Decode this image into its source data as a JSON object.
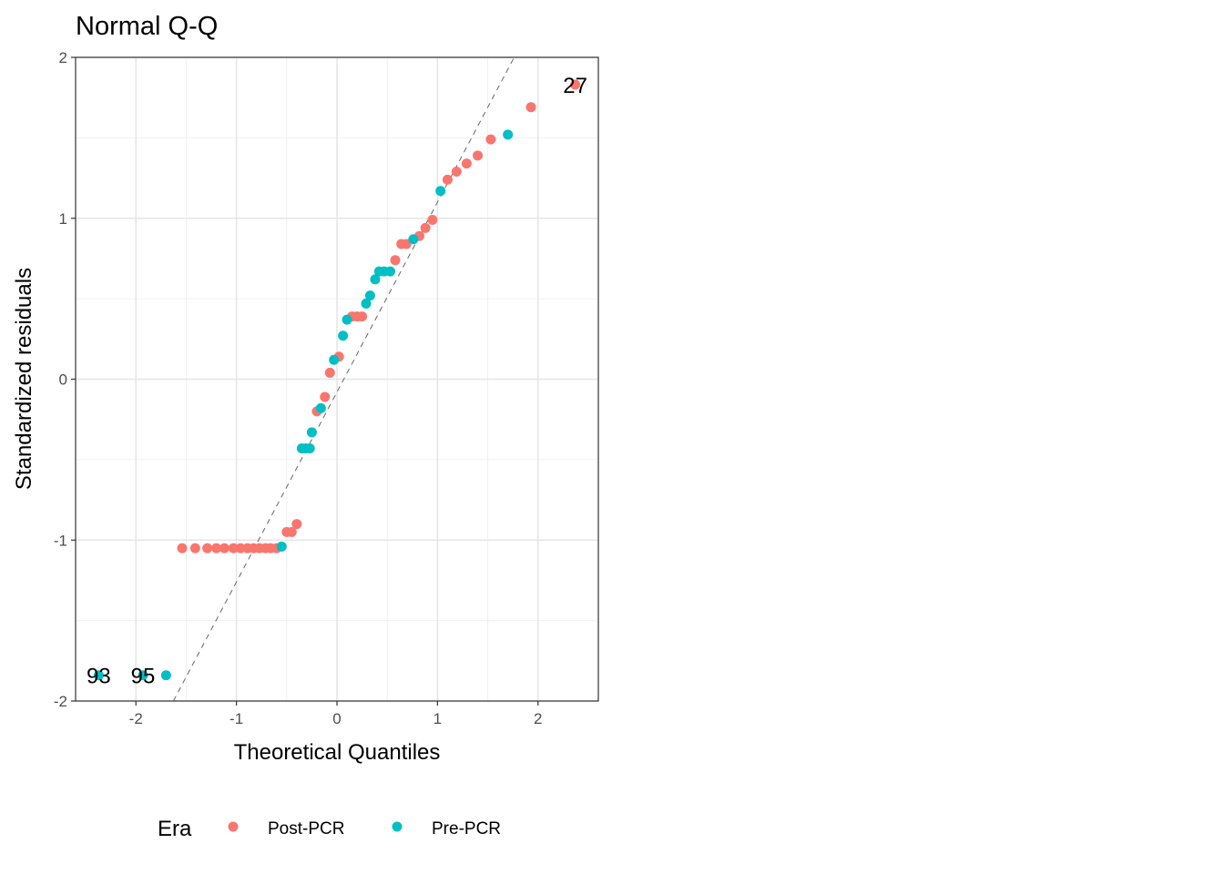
{
  "chart_data": {
    "type": "scatter",
    "title": "Normal Q-Q",
    "xlabel": "Theoretical Quantiles",
    "ylabel": "Standardized residuals",
    "xlim": [
      -2.6,
      2.6
    ],
    "ylim": [
      -2.0,
      2.0
    ],
    "x_ticks": [
      -2,
      -1,
      0,
      1,
      2
    ],
    "y_ticks": [
      -2,
      -1,
      0,
      1,
      2
    ],
    "x_tick_labels": [
      "-2",
      "-1",
      "0",
      "1",
      "2"
    ],
    "y_tick_labels": [
      "-2",
      "-1",
      "0",
      "1",
      "2"
    ],
    "grid": true,
    "reference_line": {
      "style": "dashed",
      "slope": 1.18,
      "intercept": -0.08
    },
    "legend": {
      "title": "Era",
      "position": "bottom"
    },
    "series": [
      {
        "name": "Post-PCR",
        "color": "#F8766D",
        "points": [
          [
            -1.54,
            -1.05
          ],
          [
            -1.41,
            -1.05
          ],
          [
            -1.29,
            -1.05
          ],
          [
            -1.2,
            -1.05
          ],
          [
            -1.12,
            -1.05
          ],
          [
            -1.03,
            -1.05
          ],
          [
            -0.96,
            -1.05
          ],
          [
            -0.89,
            -1.05
          ],
          [
            -0.83,
            -1.05
          ],
          [
            -0.77,
            -1.05
          ],
          [
            -0.71,
            -1.05
          ],
          [
            -0.66,
            -1.05
          ],
          [
            -0.6,
            -1.05
          ],
          [
            -0.5,
            -0.95
          ],
          [
            -0.45,
            -0.95
          ],
          [
            -0.4,
            -0.9
          ],
          [
            -0.2,
            -0.2
          ],
          [
            -0.12,
            -0.11
          ],
          [
            -0.07,
            0.04
          ],
          [
            0.02,
            0.14
          ],
          [
            0.15,
            0.39
          ],
          [
            0.2,
            0.39
          ],
          [
            0.25,
            0.39
          ],
          [
            0.58,
            0.74
          ],
          [
            0.64,
            0.84
          ],
          [
            0.69,
            0.84
          ],
          [
            0.82,
            0.89
          ],
          [
            0.88,
            0.94
          ],
          [
            0.95,
            0.99
          ],
          [
            1.1,
            1.24
          ],
          [
            1.19,
            1.29
          ],
          [
            1.29,
            1.34
          ],
          [
            1.4,
            1.39
          ],
          [
            1.53,
            1.49
          ],
          [
            1.93,
            1.69
          ],
          [
            2.37,
            1.83
          ]
        ]
      },
      {
        "name": "Pre-PCR",
        "color": "#00BFC4",
        "points": [
          [
            -2.37,
            -1.84
          ],
          [
            -1.93,
            -1.84
          ],
          [
            -1.7,
            -1.84
          ],
          [
            -0.55,
            -1.04
          ],
          [
            -0.35,
            -0.43
          ],
          [
            -0.31,
            -0.43
          ],
          [
            -0.27,
            -0.43
          ],
          [
            -0.25,
            -0.33
          ],
          [
            -0.16,
            -0.18
          ],
          [
            -0.03,
            0.12
          ],
          [
            0.06,
            0.27
          ],
          [
            0.1,
            0.37
          ],
          [
            0.29,
            0.47
          ],
          [
            0.33,
            0.52
          ],
          [
            0.38,
            0.62
          ],
          [
            0.42,
            0.67
          ],
          [
            0.47,
            0.67
          ],
          [
            0.53,
            0.67
          ],
          [
            0.76,
            0.87
          ],
          [
            1.03,
            1.17
          ],
          [
            1.7,
            1.52
          ]
        ]
      }
    ],
    "annotations": [
      {
        "text": "27",
        "x": 2.37,
        "y": 1.83
      },
      {
        "text": "93",
        "x": -2.37,
        "y": -1.84
      },
      {
        "text": "95",
        "x": -1.93,
        "y": -1.84
      }
    ]
  }
}
